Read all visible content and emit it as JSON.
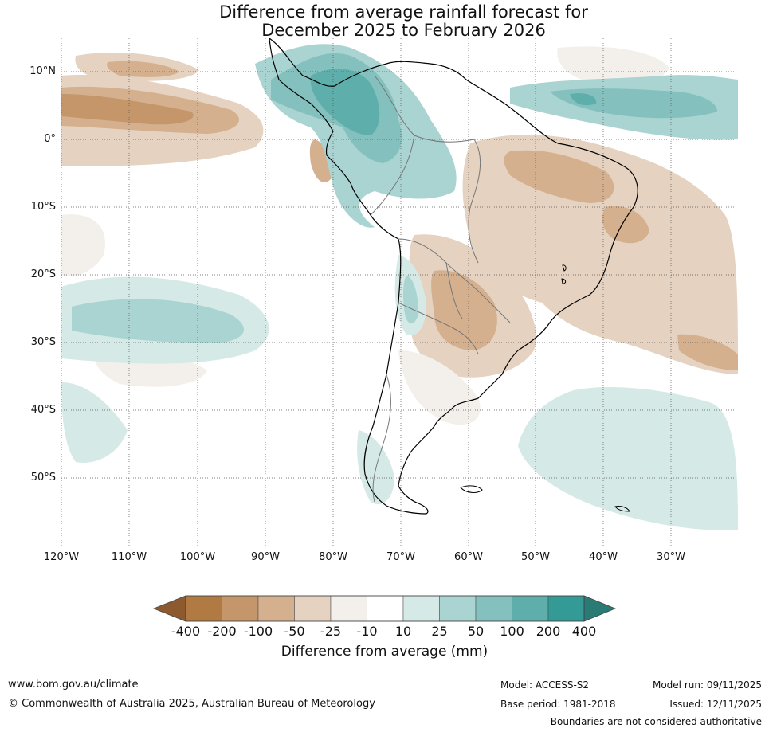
{
  "title": {
    "line1": "Difference from average rainfall forecast for",
    "line2": "December 2025 to February 2026"
  },
  "map": {
    "region": "South America",
    "lat_labels": [
      "10°N",
      "0°",
      "10°S",
      "20°S",
      "30°S",
      "40°S",
      "50°S"
    ],
    "lon_labels": [
      "120°W",
      "110°W",
      "100°W",
      "90°W",
      "80°W",
      "70°W",
      "60°W",
      "50°W",
      "40°W",
      "30°W"
    ]
  },
  "legend": {
    "ticks": [
      "-400",
      "-200",
      "-100",
      "-50",
      "-25",
      "-10",
      "10",
      "25",
      "50",
      "100",
      "200",
      "400"
    ],
    "label": "Difference from average (mm)",
    "colors": {
      "lt_-400": "#8c5a2e",
      "-400_-200": "#b07a42",
      "-200_-100": "#c4966a",
      "-100_-50": "#d4b08e",
      "-50_-25": "#e5d2c0",
      "-25_-10": "#f3efea",
      "-10_10": "#ffffff",
      "10_25": "#d5e9e7",
      "25_50": "#aad4d2",
      "50_100": "#84c1be",
      "100_200": "#5eaeab",
      "200_400": "#339a96",
      "gt_400": "#2a7a76"
    }
  },
  "footer": {
    "url": "www.bom.gov.au/climate",
    "copyright": "© Commonwealth of Australia 2025, Australian Bureau of Meteorology",
    "model": "Model: ACCESS-S2",
    "base_period": "Base period: 1981-2018",
    "model_run": "Model run: 09/11/2025",
    "issued": "Issued: 12/11/2025",
    "disclaimer": "Boundaries are not considered authoritative"
  }
}
